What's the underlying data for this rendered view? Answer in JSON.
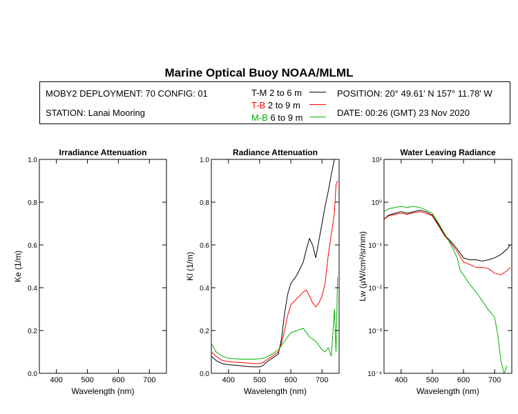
{
  "main_title": "Marine Optical Buoy NOAA/MLML",
  "info": {
    "deployment": "MOBY2 DEPLOYMENT: 70 CONFIG: 01",
    "station": "STATION: Lanai Mooring",
    "position": "POSITION: 20° 49.61' N   157° 11.78' W",
    "date": "DATE: 00:26 (GMT) 23 Nov 2020",
    "legend": [
      {
        "tag": "T-M",
        "range": "2 to 6  m",
        "color": "#000000"
      },
      {
        "tag": "T-B",
        "range": "2 to 9  m",
        "color": "#ff0000"
      },
      {
        "tag": "M-B",
        "range": "6 to 9  m",
        "color": "#00b000"
      }
    ]
  },
  "chart_data": [
    {
      "type": "line",
      "title": "Irradiance Attenuation",
      "xlabel": "Wavelength (nm)",
      "ylabel": "Ke  (1/m)",
      "xlim": [
        345,
        755
      ],
      "ylim": [
        0,
        1.0
      ],
      "xticks": [
        400,
        500,
        600,
        700
      ],
      "yticks": [
        "0.0",
        "0.2",
        "0.4",
        "0.6",
        "0.8",
        "1.0"
      ],
      "series": []
    },
    {
      "type": "line",
      "title": "Radiance Attenuation",
      "xlabel": "Wavelength (nm)",
      "ylabel": "Kl  (1/m)",
      "xlim": [
        345,
        755
      ],
      "ylim": [
        0,
        1.0
      ],
      "xticks": [
        400,
        500,
        600,
        700
      ],
      "yticks": [
        "0.0",
        "0.2",
        "0.4",
        "0.6",
        "0.8",
        "1.0"
      ],
      "series": [
        {
          "color": "#000000",
          "x": [
            345,
            360,
            380,
            400,
            420,
            440,
            460,
            480,
            500,
            510,
            520,
            540,
            560,
            570,
            580,
            590,
            600,
            620,
            640,
            650,
            660,
            670,
            680,
            690,
            700,
            710,
            720,
            730,
            740
          ],
          "y": [
            0.08,
            0.06,
            0.045,
            0.04,
            0.038,
            0.035,
            0.032,
            0.03,
            0.03,
            0.035,
            0.05,
            0.07,
            0.09,
            0.16,
            0.28,
            0.37,
            0.42,
            0.46,
            0.52,
            0.58,
            0.63,
            0.6,
            0.54,
            0.62,
            0.7,
            0.78,
            0.85,
            0.93,
            1.0
          ]
        },
        {
          "color": "#ff0000",
          "x": [
            345,
            360,
            380,
            400,
            420,
            440,
            460,
            480,
            500,
            510,
            520,
            540,
            560,
            570,
            580,
            590,
            600,
            620,
            640,
            650,
            660,
            670,
            680,
            690,
            700,
            710,
            720,
            730,
            740,
            745,
            750
          ],
          "y": [
            0.1,
            0.08,
            0.06,
            0.055,
            0.052,
            0.05,
            0.048,
            0.045,
            0.045,
            0.05,
            0.06,
            0.08,
            0.1,
            0.14,
            0.2,
            0.27,
            0.32,
            0.35,
            0.38,
            0.39,
            0.36,
            0.33,
            0.31,
            0.33,
            0.36,
            0.42,
            0.55,
            0.65,
            0.75,
            0.88,
            0.9
          ]
        },
        {
          "color": "#00b000",
          "x": [
            345,
            360,
            380,
            400,
            420,
            440,
            460,
            480,
            500,
            510,
            520,
            540,
            560,
            570,
            580,
            590,
            600,
            620,
            640,
            650,
            660,
            670,
            680,
            690,
            700,
            710,
            720,
            730,
            740,
            745,
            750
          ],
          "y": [
            0.14,
            0.1,
            0.08,
            0.07,
            0.068,
            0.066,
            0.066,
            0.066,
            0.068,
            0.07,
            0.075,
            0.09,
            0.11,
            0.13,
            0.15,
            0.17,
            0.19,
            0.2,
            0.21,
            0.19,
            0.17,
            0.16,
            0.15,
            0.13,
            0.11,
            0.1,
            0.12,
            0.08,
            0.3,
            0.1,
            0.45
          ]
        }
      ]
    },
    {
      "type": "line",
      "title": "Water Leaving Radiance",
      "xlabel": "Wavelength (nm)",
      "ylabel": "Lw  (µW/cm²/sr/nm)",
      "xlim": [
        345,
        755
      ],
      "ylim": [
        0.0001,
        10
      ],
      "log_y": true,
      "xticks": [
        400,
        500,
        600,
        700
      ],
      "yticks": [
        "10¹",
        "10⁰",
        "10⁻¹",
        "10⁻²",
        "10⁻³",
        "10⁻⁴"
      ],
      "series": [
        {
          "color": "#000000",
          "x": [
            345,
            360,
            380,
            400,
            420,
            440,
            460,
            480,
            500,
            520,
            540,
            560,
            580,
            600,
            620,
            640,
            660,
            680,
            700,
            720,
            740,
            750
          ],
          "y": [
            0.4,
            0.5,
            0.55,
            0.6,
            0.55,
            0.6,
            0.65,
            0.6,
            0.5,
            0.3,
            0.17,
            0.12,
            0.08,
            0.05,
            0.045,
            0.045,
            0.042,
            0.045,
            0.05,
            0.06,
            0.08,
            0.1
          ]
        },
        {
          "color": "#ff0000",
          "x": [
            345,
            360,
            380,
            400,
            420,
            440,
            460,
            480,
            500,
            520,
            540,
            560,
            580,
            600,
            620,
            640,
            660,
            680,
            700,
            720,
            740,
            750
          ],
          "y": [
            0.4,
            0.48,
            0.52,
            0.55,
            0.52,
            0.57,
            0.6,
            0.55,
            0.48,
            0.28,
            0.16,
            0.11,
            0.07,
            0.04,
            0.035,
            0.03,
            0.03,
            0.028,
            0.022,
            0.02,
            0.025,
            0.03
          ]
        },
        {
          "color": "#00b000",
          "x": [
            345,
            360,
            380,
            400,
            420,
            440,
            460,
            480,
            500,
            520,
            540,
            560,
            580,
            590,
            600,
            620,
            640,
            660,
            680,
            690,
            700,
            710,
            720,
            730,
            740
          ],
          "y": [
            0.6,
            0.7,
            0.75,
            0.8,
            0.75,
            0.8,
            0.75,
            0.65,
            0.55,
            0.32,
            0.18,
            0.1,
            0.05,
            0.025,
            0.02,
            0.012,
            0.008,
            0.005,
            0.003,
            0.0025,
            0.002,
            0.0008,
            0.0002,
            8e-05,
            0.00015
          ]
        }
      ]
    }
  ]
}
